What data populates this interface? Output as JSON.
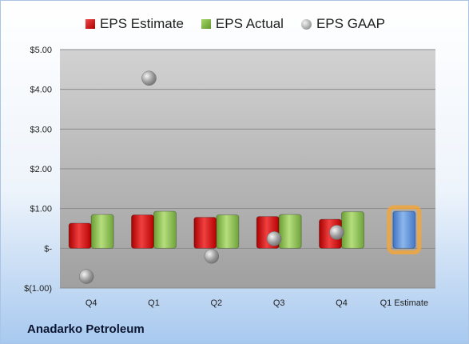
{
  "chart_data": {
    "type": "bar",
    "categories": [
      "Q4",
      "Q1",
      "Q2",
      "Q3",
      "Q4",
      "Q1 Estimate"
    ],
    "series": [
      {
        "name": "EPS Estimate",
        "color": "#d42020",
        "values": [
          0.63,
          0.84,
          0.78,
          0.8,
          0.73,
          null
        ]
      },
      {
        "name": "EPS Actual",
        "color": "#88c04a",
        "values": [
          0.85,
          0.93,
          0.84,
          0.85,
          0.92,
          null
        ]
      },
      {
        "name": "EPS GAAP",
        "color": "#a8a8a8",
        "marker": "circle",
        "values": [
          -0.71,
          4.28,
          -0.2,
          0.24,
          0.4,
          null
        ]
      }
    ],
    "estimate_bar": {
      "category": "Q1 Estimate",
      "value": 0.93,
      "color": "#5b8ed6",
      "highlight": "#f3a63a"
    },
    "y_ticks": [
      {
        "value": 5,
        "label": "$5.00"
      },
      {
        "value": 4,
        "label": "$4.00"
      },
      {
        "value": 3,
        "label": "$3.00"
      },
      {
        "value": 2,
        "label": "$2.00"
      },
      {
        "value": 1,
        "label": "$1.00"
      },
      {
        "value": 0,
        "label": "$-"
      },
      {
        "value": -1,
        "label": "$(1.00)"
      }
    ],
    "ylim": [
      -1,
      5
    ],
    "grid": true,
    "legend_position": "top",
    "company": "Anadarko Petroleum"
  }
}
